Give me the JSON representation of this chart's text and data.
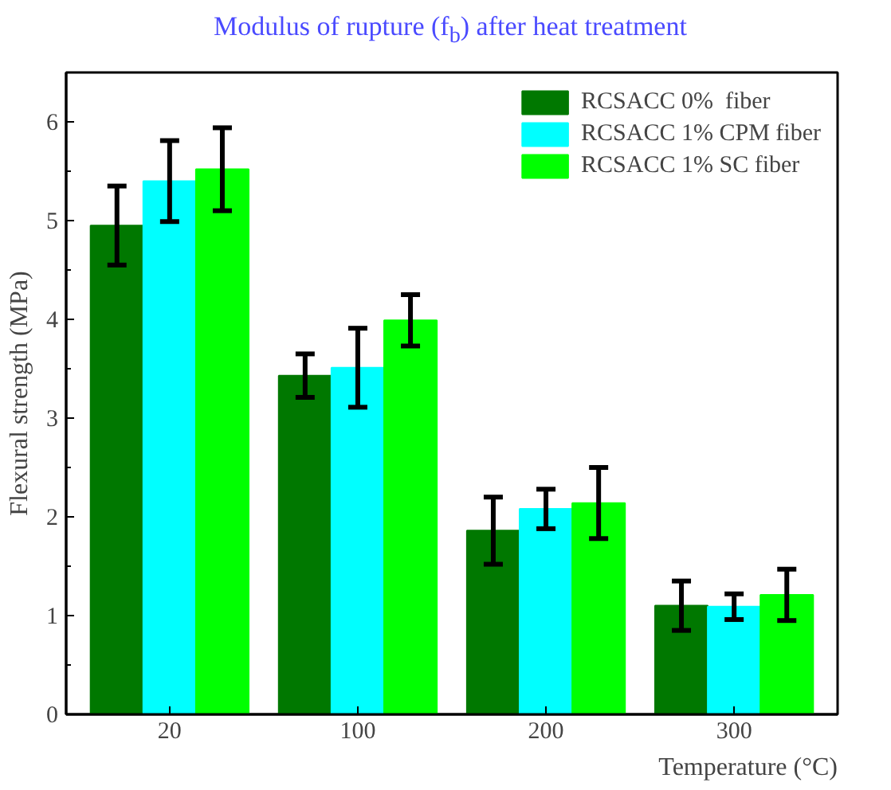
{
  "chart_data": {
    "type": "bar",
    "title": "Modulus of rupture (f$_{b}$) after heat  treatment",
    "xlabel": "Temperature (°C)",
    "ylabel": "Flexural strength (MPa)",
    "categories": [
      "20",
      "100",
      "200",
      "300"
    ],
    "series": [
      {
        "name": "RCSACC 0%  fiber",
        "color": "#007800",
        "values": [
          4.95,
          3.43,
          1.86,
          1.1
        ],
        "errors": [
          0.4,
          0.22,
          0.34,
          0.25
        ]
      },
      {
        "name": "RCSACC 1% CPM fiber",
        "color": "#00ffff",
        "values": [
          5.4,
          3.51,
          2.08,
          1.09
        ],
        "errors": [
          0.41,
          0.4,
          0.2,
          0.13
        ]
      },
      {
        "name": "RCSACC 1% SC fiber",
        "color": "#00ff00",
        "values": [
          5.52,
          3.99,
          2.14,
          1.21
        ],
        "errors": [
          0.42,
          0.26,
          0.36,
          0.26
        ]
      }
    ],
    "ylim": [
      0,
      6.5
    ],
    "yticks": [
      0,
      1,
      2,
      3,
      4,
      5,
      6
    ],
    "legend": "top right",
    "grid": false
  }
}
